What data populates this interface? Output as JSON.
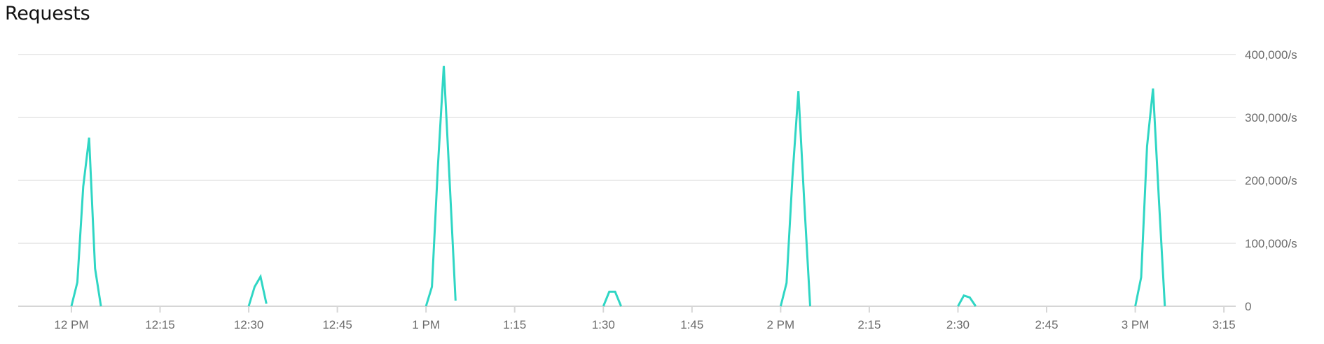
{
  "title": "Requests",
  "chart_data": {
    "type": "line",
    "title": "Requests",
    "xlabel": "",
    "ylabel": "",
    "x_unit": "time",
    "xlim": [
      "11:51",
      "15:17"
    ],
    "ylim": [
      0,
      400000
    ],
    "grid": true,
    "legend": "none",
    "y_axis_side": "right",
    "y_ticks": [
      {
        "value": 0,
        "label": "0"
      },
      {
        "value": 100000,
        "label": "100,000/s"
      },
      {
        "value": 200000,
        "label": "200,000/s"
      },
      {
        "value": 300000,
        "label": "300,000/s"
      },
      {
        "value": 400000,
        "label": "400,000/s"
      }
    ],
    "x_ticks": [
      {
        "time": "12:00",
        "label": "12 PM"
      },
      {
        "time": "12:15",
        "label": "12:15"
      },
      {
        "time": "12:30",
        "label": "12:30"
      },
      {
        "time": "12:45",
        "label": "12:45"
      },
      {
        "time": "13:00",
        "label": "1 PM"
      },
      {
        "time": "13:15",
        "label": "1:15"
      },
      {
        "time": "13:30",
        "label": "1:30"
      },
      {
        "time": "13:45",
        "label": "1:45"
      },
      {
        "time": "14:00",
        "label": "2 PM"
      },
      {
        "time": "14:15",
        "label": "2:15"
      },
      {
        "time": "14:30",
        "label": "2:30"
      },
      {
        "time": "14:45",
        "label": "2:45"
      },
      {
        "time": "15:00",
        "label": "3 PM"
      },
      {
        "time": "15:15",
        "label": "3:15"
      }
    ],
    "series": [
      {
        "color": "#2fd6c4",
        "segments": [
          [
            [
              "12:00",
              0
            ],
            [
              "12:01",
              38000
            ],
            [
              "12:02",
              190000
            ],
            [
              "12:03",
              268000
            ],
            [
              "12:04",
              60000
            ],
            [
              "12:05",
              0
            ]
          ],
          [
            [
              "12:30",
              0
            ],
            [
              "12:31",
              31000
            ],
            [
              "12:32",
              47000
            ],
            [
              "12:33",
              4000
            ]
          ],
          [
            [
              "13:00",
              0
            ],
            [
              "13:01",
              31000
            ],
            [
              "13:02",
              220000
            ],
            [
              "13:03",
              382000
            ],
            [
              "13:04",
              198000
            ],
            [
              "13:05",
              9000
            ]
          ],
          [
            [
              "13:30",
              0
            ],
            [
              "13:31",
              23000
            ],
            [
              "13:32",
              23000
            ],
            [
              "13:33",
              0
            ]
          ],
          [
            [
              "14:00",
              0
            ],
            [
              "14:01",
              37000
            ],
            [
              "14:02",
              205000
            ],
            [
              "14:03",
              342000
            ],
            [
              "14:04",
              165000
            ],
            [
              "14:05",
              0
            ]
          ],
          [
            [
              "14:30",
              0
            ],
            [
              "14:31",
              17000
            ],
            [
              "14:32",
              14000
            ],
            [
              "14:33",
              0
            ]
          ],
          [
            [
              "15:00",
              0
            ],
            [
              "15:01",
              46000
            ],
            [
              "15:02",
              254000
            ],
            [
              "15:03",
              346000
            ],
            [
              "15:04",
              170000
            ],
            [
              "15:05",
              0
            ]
          ]
        ]
      }
    ]
  }
}
